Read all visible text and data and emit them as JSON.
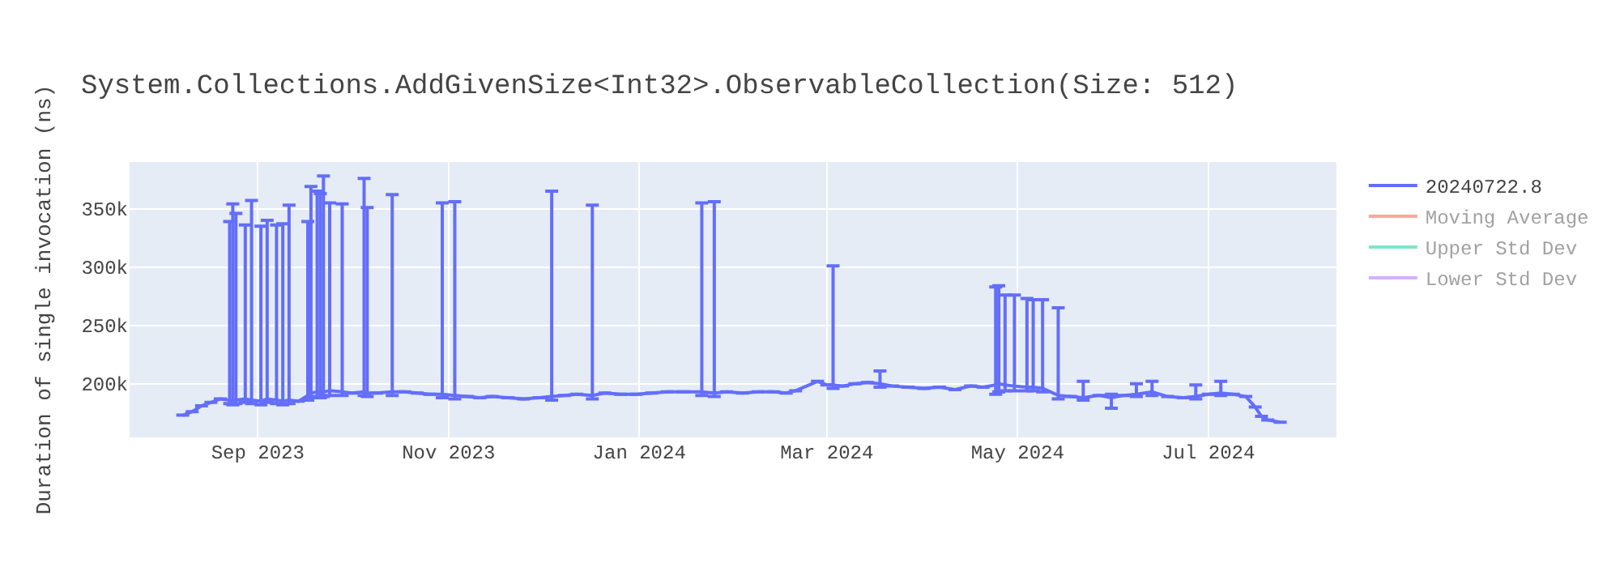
{
  "chart_data": {
    "type": "line",
    "title": "System.Collections.AddGivenSize<Int32>.ObservableCollection(Size: 512)",
    "ylabel": "Duration of single invocation (ns)",
    "x": [
      "2023-08-08",
      "2023-08-11",
      "2023-08-14",
      "2023-08-17",
      "2023-08-20",
      "2023-08-23",
      "2023-08-24",
      "2023-08-25",
      "2023-08-28",
      "2023-08-30",
      "2023-09-02",
      "2023-09-04",
      "2023-09-07",
      "2023-09-09",
      "2023-09-11",
      "2023-09-14",
      "2023-09-17",
      "2023-09-18",
      "2023-09-20",
      "2023-09-21",
      "2023-09-22",
      "2023-09-24",
      "2023-09-28",
      "2023-10-01",
      "2023-10-05",
      "2023-10-06",
      "2023-10-09",
      "2023-10-14",
      "2023-10-18",
      "2023-10-22",
      "2023-10-26",
      "2023-10-30",
      "2023-11-03",
      "2023-11-07",
      "2023-11-11",
      "2023-11-15",
      "2023-11-20",
      "2023-11-25",
      "2023-11-30",
      "2023-12-04",
      "2023-12-08",
      "2023-12-12",
      "2023-12-17",
      "2023-12-21",
      "2023-12-26",
      "2023-12-31",
      "2024-01-05",
      "2024-01-10",
      "2024-01-15",
      "2024-01-21",
      "2024-01-25",
      "2024-01-29",
      "2024-02-03",
      "2024-02-08",
      "2024-02-13",
      "2024-02-17",
      "2024-02-20",
      "2024-02-27",
      "2024-03-01",
      "2024-03-03",
      "2024-03-06",
      "2024-03-10",
      "2024-03-14",
      "2024-03-18",
      "2024-03-22",
      "2024-03-27",
      "2024-04-01",
      "2024-04-06",
      "2024-04-11",
      "2024-04-16",
      "2024-04-20",
      "2024-04-24",
      "2024-04-25",
      "2024-04-27",
      "2024-04-30",
      "2024-05-04",
      "2024-05-06",
      "2024-05-09",
      "2024-05-14",
      "2024-05-18",
      "2024-05-22",
      "2024-05-27",
      "2024-05-31",
      "2024-06-04",
      "2024-06-08",
      "2024-06-13",
      "2024-06-18",
      "2024-06-23",
      "2024-06-27",
      "2024-07-01",
      "2024-07-05",
      "2024-07-09",
      "2024-07-13",
      "2024-07-16",
      "2024-07-18",
      "2024-07-20",
      "2024-07-24"
    ],
    "series": [
      {
        "name": "20240722.8",
        "color": "#636efa",
        "values": [
          173000,
          176000,
          181000,
          184000,
          187000,
          186000,
          185000,
          186000,
          187000,
          186000,
          185000,
          187000,
          186000,
          185000,
          186000,
          185000,
          190000,
          192000,
          193000,
          192000,
          193000,
          194000,
          193000,
          192000,
          193000,
          192000,
          192000,
          193000,
          193000,
          192000,
          191000,
          191000,
          190000,
          189000,
          188000,
          189000,
          188000,
          187000,
          188000,
          189000,
          190000,
          191000,
          190000,
          192000,
          191000,
          191000,
          192000,
          193000,
          193000,
          193000,
          192000,
          193000,
          192000,
          193000,
          193000,
          192000,
          194000,
          202000,
          199000,
          199000,
          198000,
          200000,
          201000,
          200000,
          198000,
          197000,
          196000,
          197000,
          195000,
          198000,
          197000,
          199000,
          200000,
          199000,
          198000,
          197000,
          197000,
          196000,
          190000,
          189000,
          188000,
          190000,
          188000,
          190000,
          191000,
          193000,
          189000,
          188000,
          189000,
          191000,
          192000,
          191000,
          189000,
          180000,
          172000,
          169000,
          167000
        ],
        "errors": [
          null,
          null,
          null,
          null,
          null,
          [
            183000,
            339000
          ],
          [
            182000,
            354000
          ],
          [
            183000,
            346000
          ],
          [
            184000,
            336000
          ],
          [
            183000,
            357000
          ],
          [
            182000,
            335000
          ],
          [
            184000,
            340000
          ],
          [
            183000,
            336000
          ],
          [
            182000,
            337000
          ],
          [
            183000,
            353000
          ],
          null,
          [
            186000,
            339000
          ],
          [
            188000,
            369000
          ],
          [
            189000,
            365000
          ],
          [
            188000,
            363000
          ],
          [
            189000,
            378000
          ],
          [
            190000,
            355000
          ],
          [
            190000,
            354000
          ],
          null,
          [
            190000,
            376000
          ],
          [
            189000,
            351000
          ],
          null,
          [
            190000,
            362000
          ],
          null,
          null,
          null,
          [
            188000,
            355000
          ],
          [
            187000,
            356000
          ],
          null,
          null,
          null,
          null,
          null,
          null,
          [
            186000,
            365000
          ],
          null,
          null,
          [
            187000,
            353000
          ],
          null,
          null,
          null,
          null,
          null,
          null,
          [
            190000,
            355000
          ],
          [
            189000,
            356000
          ],
          null,
          null,
          null,
          null,
          null,
          null,
          null,
          null,
          [
            196000,
            301000
          ],
          null,
          null,
          null,
          [
            197000,
            211000
          ],
          null,
          null,
          null,
          null,
          null,
          null,
          null,
          [
            191000,
            283000
          ],
          [
            193000,
            284000
          ],
          [
            194000,
            276000
          ],
          [
            194000,
            276000
          ],
          [
            194000,
            273000
          ],
          [
            194000,
            272000
          ],
          [
            193000,
            272000
          ],
          [
            187000,
            265000
          ],
          null,
          [
            186000,
            202000
          ],
          null,
          [
            179000,
            191000
          ],
          null,
          [
            189000,
            200000
          ],
          [
            190000,
            202000
          ],
          null,
          null,
          [
            187000,
            199000
          ],
          null,
          [
            190000,
            202000
          ],
          null,
          null,
          null,
          null,
          null,
          null
        ]
      },
      {
        "name": "Moving Average",
        "color": "#ef553b",
        "values": [
          null,
          null,
          null,
          null,
          null,
          null,
          null,
          null,
          null,
          null,
          null,
          null,
          null,
          null,
          null,
          null,
          null,
          null,
          null,
          null,
          null,
          null,
          null,
          null,
          null,
          null,
          null,
          null,
          null,
          null,
          null,
          null,
          null,
          null,
          null,
          null,
          null,
          null,
          null,
          null,
          null,
          null,
          null,
          null,
          null,
          null,
          null,
          null,
          null,
          null,
          null,
          null,
          null,
          null,
          null,
          null,
          null,
          null,
          null,
          null,
          null,
          null,
          null,
          null,
          null,
          null,
          null,
          null,
          null,
          null,
          null,
          null,
          null,
          null,
          null,
          null,
          null,
          null,
          null,
          null,
          null,
          null,
          null,
          null,
          null,
          null,
          null,
          null,
          null,
          null,
          null,
          null,
          null,
          null,
          null,
          null,
          null
        ]
      },
      {
        "name": "Upper Std Dev",
        "color": "#00cc96",
        "values": [
          null,
          null,
          null,
          null,
          null,
          null,
          null,
          null,
          null,
          null,
          null,
          null,
          null,
          null,
          null,
          null,
          null,
          null,
          null,
          null,
          null,
          null,
          null,
          null,
          null,
          null,
          null,
          null,
          null,
          null,
          null,
          null,
          null,
          null,
          null,
          null,
          null,
          null,
          null,
          null,
          null,
          null,
          null,
          null,
          null,
          null,
          null,
          null,
          null,
          null,
          null,
          null,
          null,
          null,
          null,
          null,
          null,
          null,
          null,
          null,
          null,
          null,
          null,
          null,
          null,
          null,
          null,
          null,
          null,
          null,
          null,
          null,
          null,
          null,
          null,
          null,
          null,
          null,
          null,
          null,
          null,
          null,
          null,
          null,
          null,
          null,
          null,
          null,
          null,
          null,
          null,
          null,
          null,
          null,
          null,
          null,
          null
        ]
      },
      {
        "name": "Lower Std Dev",
        "color": "#ab63fa",
        "values": [
          null,
          null,
          null,
          null,
          null,
          null,
          null,
          null,
          null,
          null,
          null,
          null,
          null,
          null,
          null,
          null,
          null,
          null,
          null,
          null,
          null,
          null,
          null,
          null,
          null,
          null,
          null,
          null,
          null,
          null,
          null,
          null,
          null,
          null,
          null,
          null,
          null,
          null,
          null,
          null,
          null,
          null,
          null,
          null,
          null,
          null,
          null,
          null,
          null,
          null,
          null,
          null,
          null,
          null,
          null,
          null,
          null,
          null,
          null,
          null,
          null,
          null,
          null,
          null,
          null,
          null,
          null,
          null,
          null,
          null,
          null,
          null,
          null,
          null,
          null,
          null,
          null,
          null,
          null,
          null,
          null,
          null,
          null,
          null,
          null,
          null,
          null,
          null,
          null,
          null,
          null,
          null,
          null,
          null,
          null,
          null,
          null
        ]
      }
    ],
    "xlim": [
      "2023-07-22",
      "2024-08-11"
    ],
    "xticks": [
      {
        "value": "2023-09-01",
        "label": "Sep 2023"
      },
      {
        "value": "2023-11-01",
        "label": "Nov 2023"
      },
      {
        "value": "2024-01-01",
        "label": "Jan 2024"
      },
      {
        "value": "2024-03-01",
        "label": "Mar 2024"
      },
      {
        "value": "2024-05-01",
        "label": "May 2024"
      },
      {
        "value": "2024-07-01",
        "label": "Jul 2024"
      }
    ],
    "ylim": [
      154000,
      390000
    ],
    "yticks": [
      {
        "value": 200000,
        "label": "200k"
      },
      {
        "value": 250000,
        "label": "250k"
      },
      {
        "value": 300000,
        "label": "300k"
      },
      {
        "value": 350000,
        "label": "350k"
      }
    ],
    "grid": true,
    "legend": "right",
    "marker": "none",
    "line_style": "solid"
  }
}
